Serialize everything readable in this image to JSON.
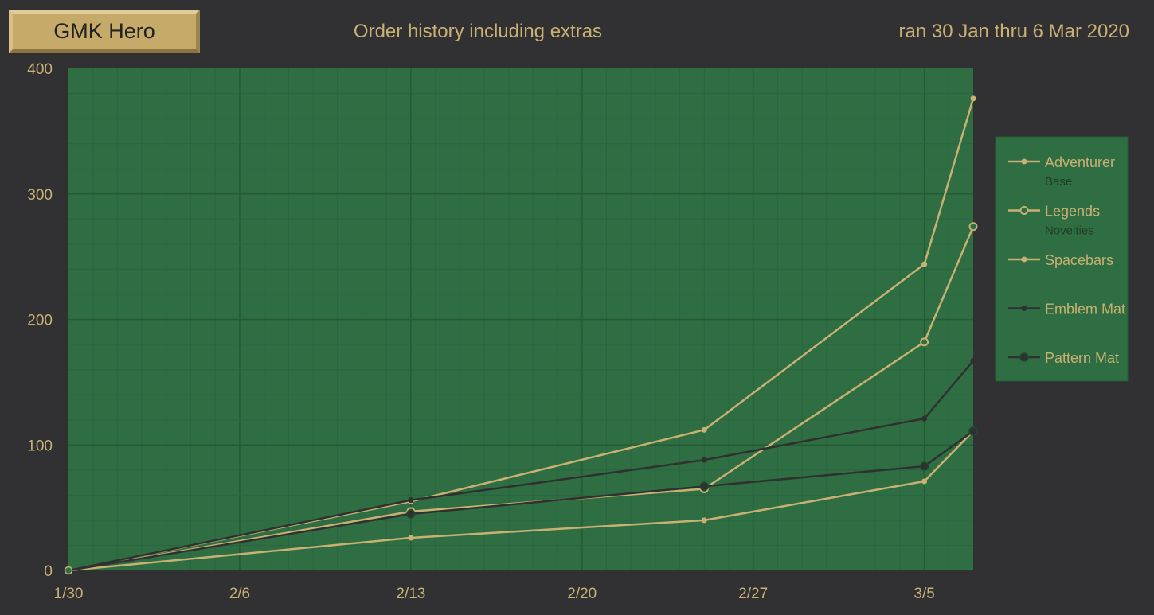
{
  "header": {
    "badge": "GMK Hero",
    "title": "Order history including extras",
    "subtitle": "ran 30 Jan thru 6 Mar 2020"
  },
  "colors": {
    "background": "#313133",
    "plot_bg": "#2e6e42",
    "grid_major": "#245a34",
    "grid_minor": "#2a6540",
    "gold": "#c9b073",
    "dark": "#2f3130",
    "legend_sub_text": "#1f3d28"
  },
  "chart_data": {
    "type": "line",
    "title": "Order history including extras",
    "x_ticks": [
      "1/30",
      "2/6",
      "2/13",
      "2/20",
      "2/27",
      "3/5"
    ],
    "y_ticks": [
      "0",
      "100",
      "200",
      "300",
      "400"
    ],
    "xlim": [
      "2020-01-30",
      "2020-03-07"
    ],
    "ylim": [
      0,
      400
    ],
    "grid": true,
    "legend_position": "right",
    "x": [
      "2020-01-30",
      "2020-02-13",
      "2020-02-25",
      "2020-03-05",
      "2020-03-07"
    ],
    "series": [
      {
        "name": "Adventurer",
        "sub": "Base",
        "values": [
          0,
          55,
          112,
          244,
          376
        ],
        "color": "#c9b073",
        "marker": "dot"
      },
      {
        "name": "Legends",
        "sub": "Novelties",
        "values": [
          0,
          47,
          65,
          182,
          274
        ],
        "color": "#c9b073",
        "marker": "ring"
      },
      {
        "name": "Spacebars",
        "sub": "",
        "values": [
          0,
          26,
          40,
          71,
          111
        ],
        "color": "#c9b073",
        "marker": "dot"
      },
      {
        "name": "Emblem Mat",
        "sub": "",
        "values": [
          0,
          56,
          88,
          121,
          167
        ],
        "color": "#2f3130",
        "marker": "dot"
      },
      {
        "name": "Pattern Mat",
        "sub": "",
        "values": [
          0,
          45,
          67,
          83,
          111
        ],
        "color": "#2f3130",
        "marker": "bigdot"
      }
    ]
  }
}
